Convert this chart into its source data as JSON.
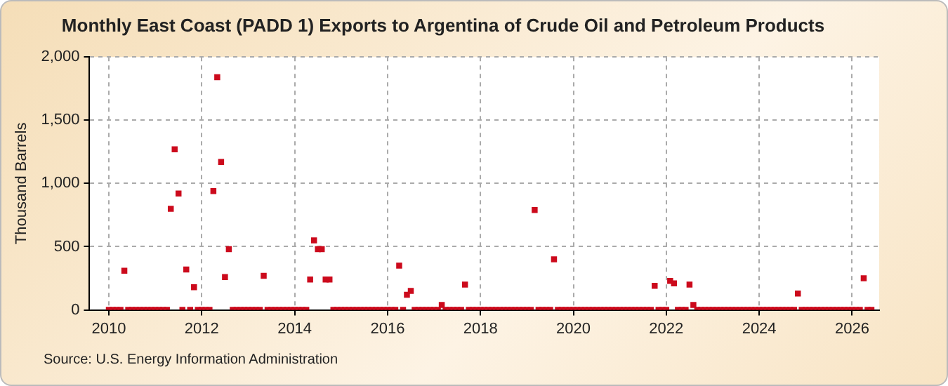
{
  "chart_data": {
    "type": "scatter",
    "title": "Monthly East Coast (PADD 1) Exports to Argentina of Crude Oil and Petroleum Products",
    "ylabel": "Thousand Barrels",
    "annotations": [
      "Source: U.S. Energy Information Administration"
    ],
    "x": [
      "2010-01",
      "2010-02",
      "2010-03",
      "2010-04",
      "2010-05",
      "2010-06",
      "2010-07",
      "2010-08",
      "2010-09",
      "2010-10",
      "2010-11",
      "2010-12",
      "2011-01",
      "2011-02",
      "2011-03",
      "2011-04",
      "2011-05",
      "2011-06",
      "2011-07",
      "2011-08",
      "2011-09",
      "2011-10",
      "2011-11",
      "2011-12",
      "2012-01",
      "2012-02",
      "2012-03",
      "2012-04",
      "2012-05",
      "2012-06",
      "2012-07",
      "2012-08",
      "2012-09",
      "2012-10",
      "2012-11",
      "2012-12",
      "2013-01",
      "2013-02",
      "2013-03",
      "2013-04",
      "2013-05",
      "2013-06",
      "2013-07",
      "2013-08",
      "2013-09",
      "2013-10",
      "2013-11",
      "2013-12",
      "2014-01",
      "2014-02",
      "2014-03",
      "2014-04",
      "2014-05",
      "2014-06",
      "2014-07",
      "2014-08",
      "2014-09",
      "2014-10",
      "2014-11",
      "2014-12",
      "2015-01",
      "2015-02",
      "2015-03",
      "2015-04",
      "2015-05",
      "2015-06",
      "2015-07",
      "2015-08",
      "2015-09",
      "2015-10",
      "2015-11",
      "2015-12",
      "2016-01",
      "2016-02",
      "2016-03",
      "2016-04",
      "2016-05",
      "2016-06",
      "2016-07",
      "2016-08",
      "2016-09",
      "2016-10",
      "2016-11",
      "2016-12",
      "2017-01",
      "2017-02",
      "2017-03",
      "2017-04",
      "2017-05",
      "2017-06",
      "2017-07",
      "2017-08",
      "2017-09",
      "2017-10",
      "2017-11",
      "2017-12",
      "2018-01",
      "2018-02",
      "2018-03",
      "2018-04",
      "2018-05",
      "2018-06",
      "2018-07",
      "2018-08",
      "2018-09",
      "2018-10",
      "2018-11",
      "2018-12",
      "2019-01",
      "2019-02",
      "2019-03",
      "2019-04",
      "2019-05",
      "2019-06",
      "2019-07",
      "2019-08",
      "2019-09",
      "2019-10",
      "2019-11",
      "2019-12",
      "2020-01",
      "2020-02",
      "2020-03",
      "2020-04",
      "2020-05",
      "2020-06",
      "2020-07",
      "2020-08",
      "2020-09",
      "2020-10",
      "2020-11",
      "2020-12",
      "2021-01",
      "2021-02",
      "2021-03",
      "2021-04",
      "2021-05",
      "2021-06",
      "2021-07",
      "2021-08",
      "2021-09",
      "2021-10",
      "2021-11",
      "2021-12",
      "2022-01",
      "2022-02",
      "2022-03",
      "2022-04",
      "2022-05",
      "2022-06",
      "2022-07",
      "2022-08",
      "2022-09",
      "2022-10",
      "2022-11",
      "2022-12",
      "2023-01",
      "2023-02",
      "2023-03",
      "2023-04",
      "2023-05",
      "2023-06",
      "2023-07",
      "2023-08",
      "2023-09",
      "2023-10",
      "2023-11",
      "2023-12",
      "2024-01",
      "2024-02",
      "2024-03",
      "2024-04",
      "2024-05",
      "2024-06",
      "2024-07",
      "2024-08",
      "2024-09",
      "2024-10",
      "2024-11",
      "2024-12",
      "2025-01",
      "2025-02",
      "2025-03",
      "2025-04",
      "2025-05",
      "2025-06",
      "2025-07",
      "2025-08",
      "2025-09",
      "2025-10",
      "2025-11",
      "2025-12",
      "2026-01",
      "2026-02",
      "2026-03",
      "2026-04",
      "2026-05",
      "2026-06"
    ],
    "series": [
      {
        "color": "#cc0a1c",
        "values": [
          0,
          0,
          0,
          0,
          310,
          0,
          0,
          0,
          0,
          0,
          0,
          0,
          0,
          0,
          0,
          0,
          800,
          1270,
          920,
          0,
          320,
          0,
          180,
          0,
          0,
          0,
          0,
          940,
          1840,
          1170,
          260,
          480,
          0,
          0,
          0,
          0,
          0,
          0,
          0,
          0,
          270,
          0,
          0,
          0,
          0,
          0,
          0,
          0,
          0,
          0,
          0,
          0,
          240,
          550,
          480,
          480,
          240,
          240,
          0,
          0,
          0,
          0,
          0,
          0,
          0,
          0,
          0,
          0,
          0,
          0,
          0,
          0,
          0,
          0,
          0,
          350,
          0,
          120,
          150,
          0,
          0,
          0,
          0,
          0,
          0,
          0,
          40,
          0,
          0,
          0,
          0,
          0,
          200,
          0,
          0,
          0,
          0,
          0,
          0,
          0,
          0,
          0,
          0,
          0,
          0,
          0,
          0,
          0,
          0,
          0,
          790,
          0,
          0,
          0,
          0,
          400,
          0,
          0,
          0,
          0,
          0,
          0,
          0,
          0,
          0,
          0,
          0,
          0,
          0,
          0,
          0,
          0,
          0,
          0,
          0,
          0,
          0,
          0,
          0,
          0,
          0,
          190,
          0,
          0,
          0,
          230,
          210,
          0,
          0,
          0,
          200,
          40,
          0,
          0,
          0,
          0,
          0,
          0,
          0,
          0,
          0,
          0,
          0,
          0,
          0,
          0,
          0,
          0,
          0,
          0,
          0,
          0,
          0,
          0,
          0,
          0,
          0,
          0,
          130,
          0,
          0,
          0,
          0,
          0,
          0,
          0,
          0,
          0,
          0,
          0,
          0,
          0,
          0,
          0,
          0,
          250,
          0,
          0
        ]
      }
    ],
    "xlim": [
      "2009-08",
      "2026-08"
    ],
    "xticks": [
      "2010",
      "2012",
      "2014",
      "2016",
      "2018",
      "2020",
      "2022",
      "2024",
      "2026"
    ],
    "ylim": [
      0,
      2000
    ],
    "yticks": [
      0,
      {
        "value": 500,
        "label": "500"
      },
      {
        "value": 1000,
        "label": "1,000"
      },
      {
        "value": 1500,
        "label": "1,500"
      },
      {
        "value": 2000,
        "label": "2,000"
      }
    ],
    "grid": true,
    "legend": false,
    "marker": "square"
  }
}
